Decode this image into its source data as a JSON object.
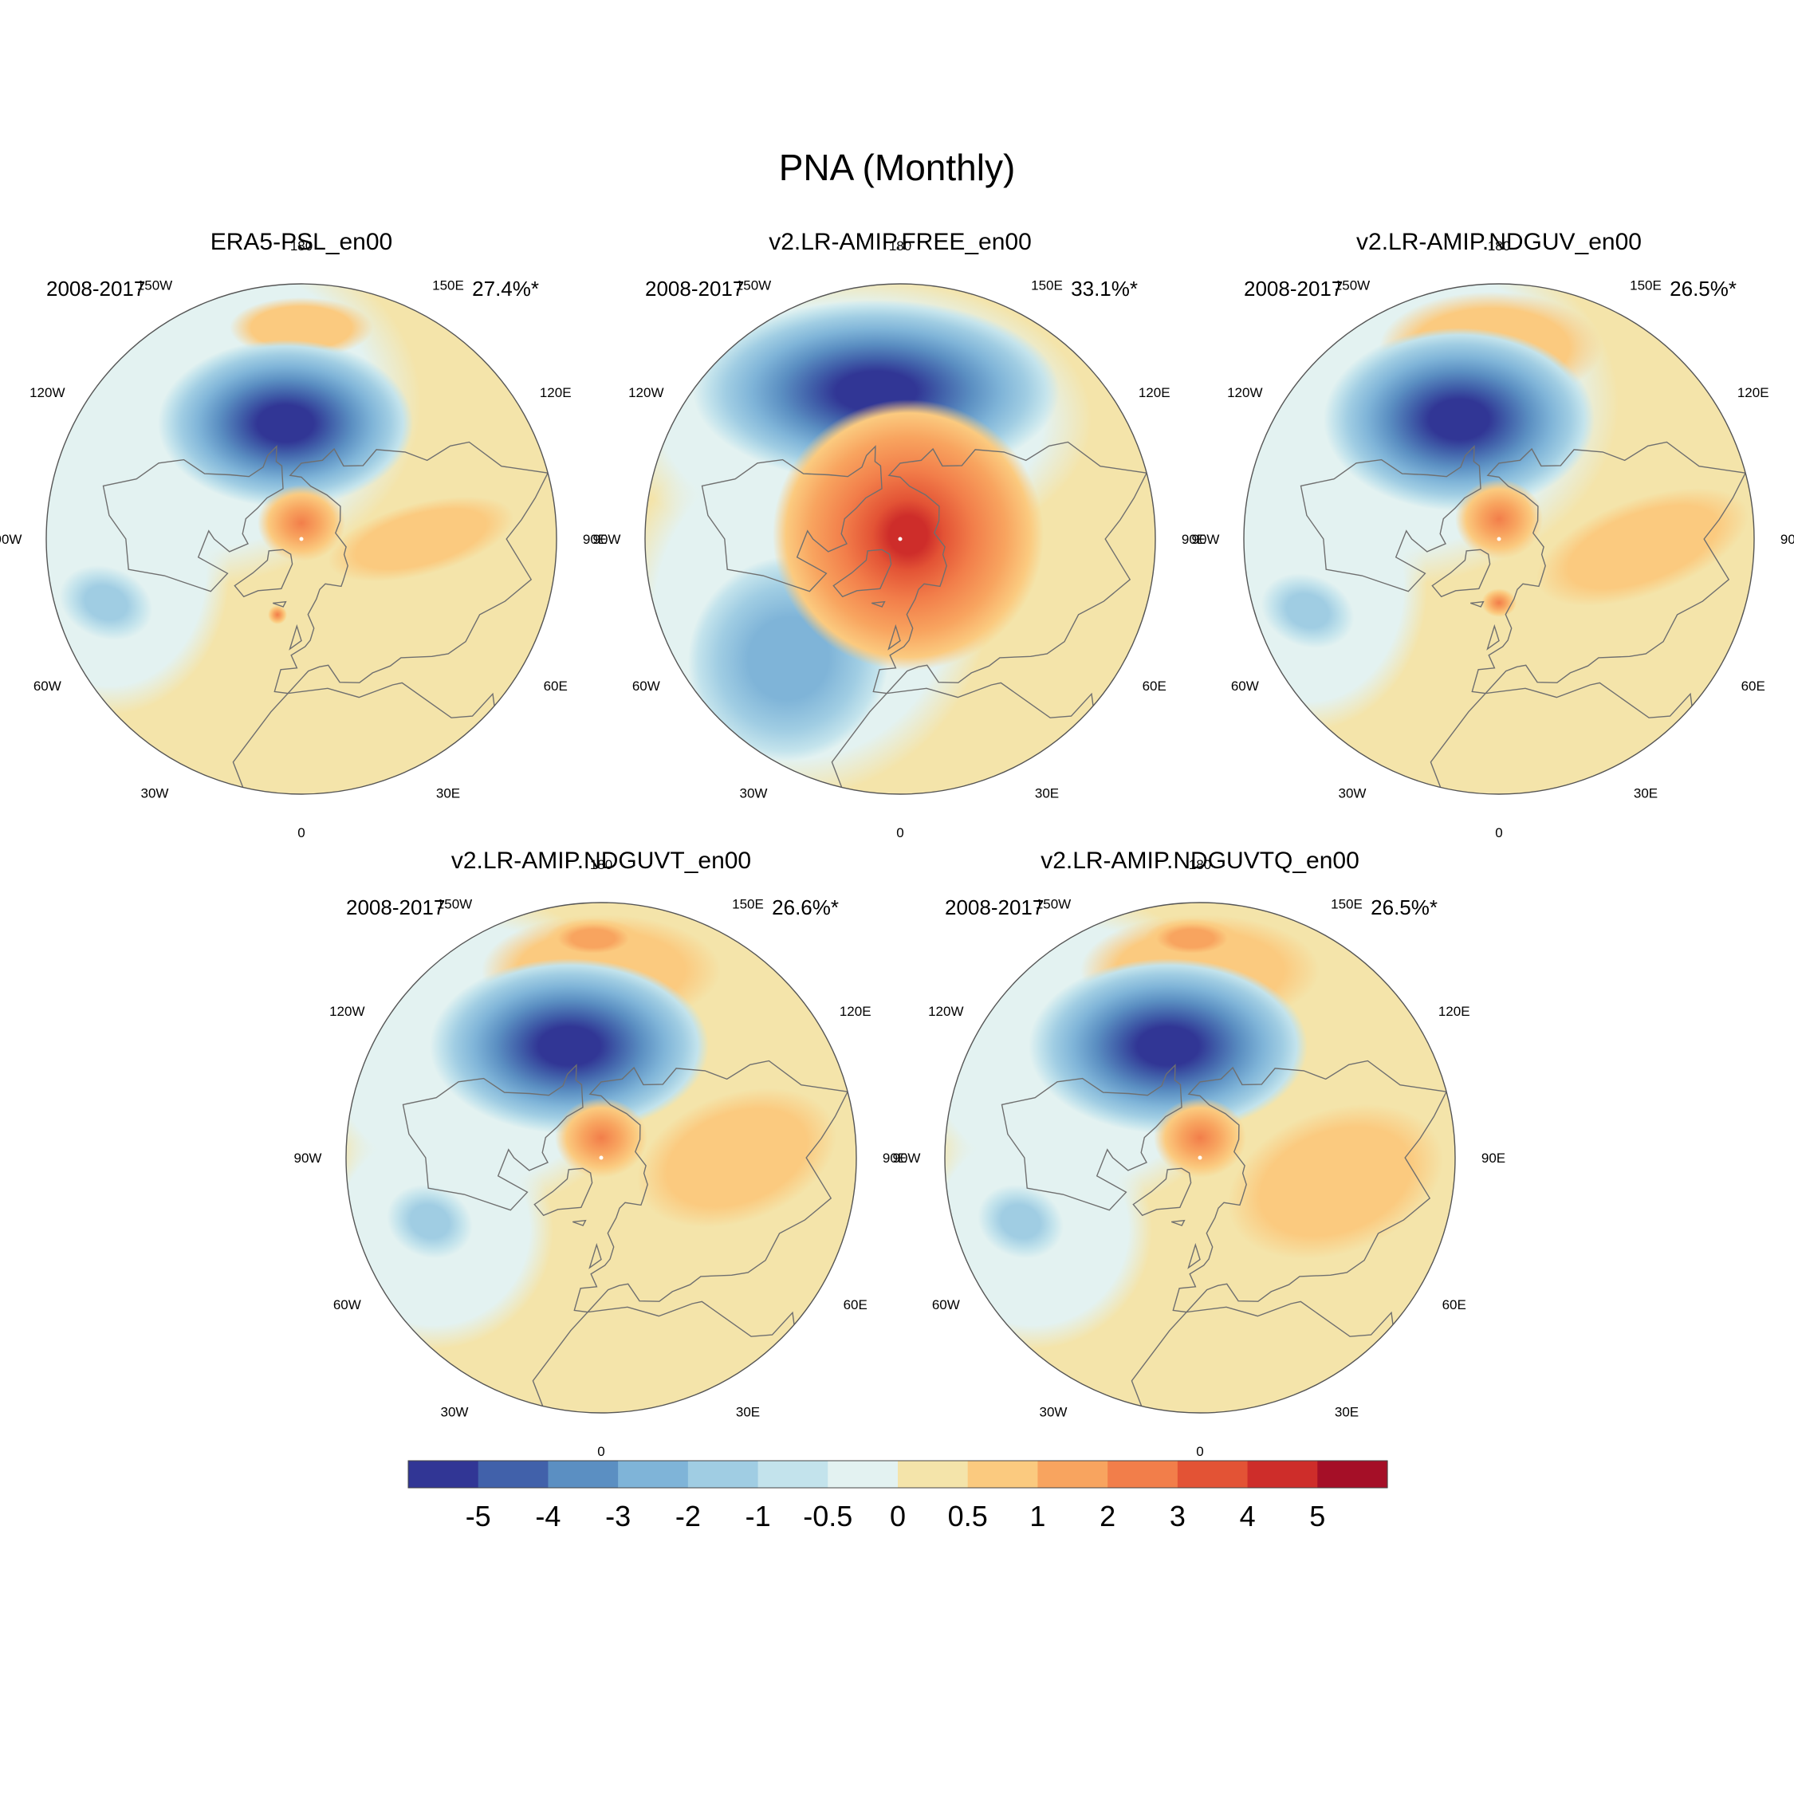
{
  "chart_data": {
    "type": "polar-stereographic-contour-map",
    "title": "PNA (Monthly)",
    "lon_labels": [
      "180",
      "150E",
      "120E",
      "90E",
      "60E",
      "30E",
      "0",
      "30W",
      "60W",
      "90W",
      "120W",
      "150W"
    ],
    "panels": [
      {
        "title": "ERA5-PSL_en00",
        "period": "2008-2017",
        "variance": "27.4%*",
        "features": [
          {
            "name": "north-pacific-low",
            "lon": -168,
            "lat": 52,
            "min": -5
          },
          {
            "name": "polar-high",
            "lon": 120,
            "lat": 82,
            "max": 2
          },
          {
            "name": "europe-asia-positive",
            "lon": 70,
            "lat": 50,
            "max": 1
          }
        ]
      },
      {
        "title": "v2.LR-AMIP.FREE_en00",
        "period": "2008-2017",
        "variance": "33.1%*",
        "features": [
          {
            "name": "north-pacific-low",
            "lon": 180,
            "lat": 45,
            "min": -5
          },
          {
            "name": "polar-high",
            "lon": 150,
            "lat": 78,
            "max": 4
          },
          {
            "name": "atlantic-low",
            "lon": -40,
            "lat": 45,
            "min": -2
          }
        ]
      },
      {
        "title": "v2.LR-AMIP.NDGUV_en00",
        "period": "2008-2017",
        "variance": "26.5%*",
        "features": [
          {
            "name": "north-pacific-low",
            "lon": -168,
            "lat": 52,
            "min": -5
          },
          {
            "name": "polar-high",
            "lon": 120,
            "lat": 82,
            "max": 2
          },
          {
            "name": "europe-asia-positive",
            "lon": 80,
            "lat": 50,
            "max": 1
          }
        ]
      },
      {
        "title": "v2.LR-AMIP.NDGUVT_en00",
        "period": "2008-2017",
        "variance": "26.6%*",
        "features": [
          {
            "name": "north-pacific-low",
            "lon": -168,
            "lat": 52,
            "min": -5
          },
          {
            "name": "polar-high",
            "lon": 120,
            "lat": 82,
            "max": 2
          },
          {
            "name": "subtropical-pacific-high",
            "lon": 180,
            "lat": 25,
            "max": 1
          }
        ]
      },
      {
        "title": "v2.LR-AMIP.NDGUVTQ_en00",
        "period": "2008-2017",
        "variance": "26.5%*",
        "features": [
          {
            "name": "north-pacific-low",
            "lon": -168,
            "lat": 52,
            "min": -5
          },
          {
            "name": "polar-high",
            "lon": 120,
            "lat": 82,
            "max": 2
          },
          {
            "name": "subtropical-pacific-high",
            "lon": 180,
            "lat": 25,
            "max": 1
          }
        ]
      }
    ],
    "colorbar": {
      "labels": [
        "-5",
        "-4",
        "-3",
        "-2",
        "-1",
        "-0.5",
        "0",
        "0.5",
        "1",
        "2",
        "3",
        "4",
        "5"
      ],
      "colors": [
        "#313695",
        "#4161aa",
        "#5b8fc2",
        "#7fb4d8",
        "#a0cde3",
        "#c3e3ec",
        "#e3f2f1",
        "#f4e4aa",
        "#fbca7f",
        "#f8a45f",
        "#f27e4a",
        "#e35335",
        "#ce2d2a",
        "#a50f27"
      ]
    }
  }
}
